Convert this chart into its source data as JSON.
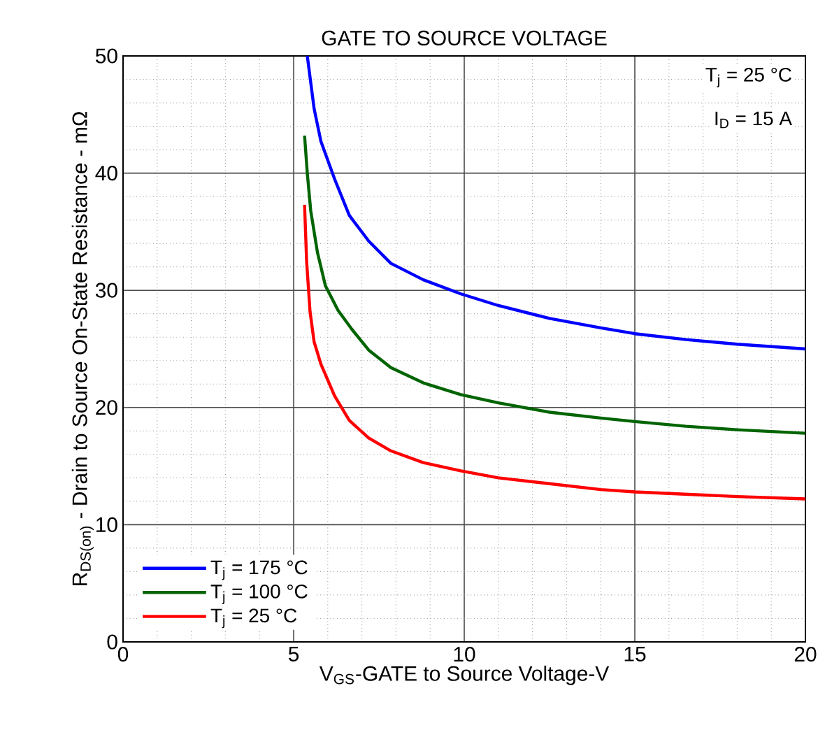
{
  "chart_data": {
    "type": "line",
    "title": "GATE TO SOURCE VOLTAGE",
    "xlabel": "V$_{GS}$-GATE to Source Voltage-V",
    "ylabel": "R$_{DS(on)}$ - Drain to Source On-State Resistance - mΩ",
    "xlim": [
      0,
      20
    ],
    "ylim": [
      0,
      50
    ],
    "xticks": [
      0,
      5,
      10,
      15,
      20
    ],
    "yticks": [
      0,
      10,
      20,
      30,
      40,
      50
    ],
    "grid": true,
    "legend": "bottom left",
    "line_style": "solid",
    "marker": "none",
    "annotations": [
      "T$_{j}$ = 25 °C",
      "I$_{D}$ = 15 A"
    ],
    "series": [
      {
        "name": "T$_{j}$ = 175 °C",
        "color": "#0000ff",
        "x": [
          5.4,
          5.6,
          5.8,
          6.2,
          6.63,
          7.2,
          7.85,
          8.8,
          9.9,
          11,
          12.5,
          14,
          15,
          16.5,
          18,
          20
        ],
        "values": [
          50,
          45.5,
          42.7,
          39.5,
          36.4,
          34.2,
          32.3,
          30.9,
          29.7,
          28.7,
          27.6,
          26.8,
          26.3,
          25.8,
          25.4,
          25.0
        ]
      },
      {
        "name": "T$_{j}$ = 100 °C",
        "color": "#006400",
        "x": [
          5.32,
          5.4,
          5.5,
          5.7,
          5.93,
          6.3,
          6.7,
          7.2,
          7.85,
          8.8,
          9.9,
          11,
          12.5,
          14,
          15,
          16.5,
          18,
          20
        ],
        "values": [
          43.2,
          40,
          36.8,
          33.2,
          30.4,
          28.3,
          26.7,
          24.9,
          23.4,
          22.1,
          21.1,
          20.4,
          19.6,
          19.1,
          18.8,
          18.4,
          18.1,
          17.8
        ]
      },
      {
        "name": "T$_{j}$ = 25 °C",
        "color": "#ff0000",
        "x": [
          5.32,
          5.38,
          5.48,
          5.6,
          5.8,
          6.2,
          6.63,
          7.2,
          7.85,
          8.8,
          9.9,
          11,
          12.5,
          14,
          15,
          16.5,
          18,
          20
        ],
        "values": [
          37.3,
          32.5,
          28.2,
          25.6,
          23.7,
          21.0,
          18.9,
          17.4,
          16.3,
          15.3,
          14.6,
          14.0,
          13.5,
          13.0,
          12.8,
          12.6,
          12.4,
          12.2
        ]
      }
    ]
  }
}
